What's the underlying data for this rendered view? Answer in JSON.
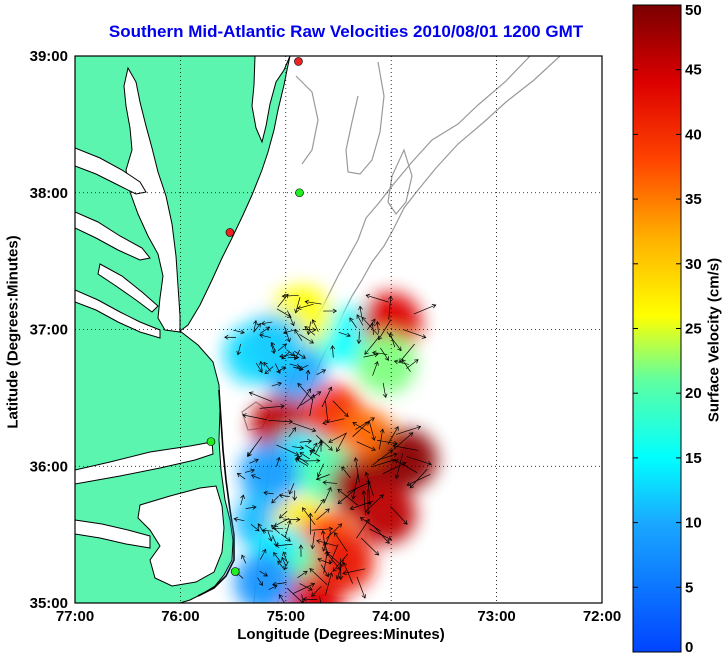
{
  "chart_data": {
    "type": "heatmap",
    "title": "Southern Mid-Atlantic Raw Velocities 2010/08/01 1200 GMT",
    "xlabel": "Longitude (Degrees:Minutes)",
    "ylabel": "Latitude (Degrees:Minutes)",
    "colorbar_label": "Surface Velocity (cm/s)",
    "xlim": [
      -77,
      -72
    ],
    "ylim": [
      35,
      39
    ],
    "x_ticks": [
      {
        "value": -77,
        "label": "77:00"
      },
      {
        "value": -76,
        "label": "76:00"
      },
      {
        "value": -75,
        "label": "75:00"
      },
      {
        "value": -74,
        "label": "74:00"
      },
      {
        "value": -73,
        "label": "73:00"
      },
      {
        "value": -72,
        "label": "72:00"
      }
    ],
    "y_ticks": [
      {
        "value": 35,
        "label": "35:00"
      },
      {
        "value": 36,
        "label": "36:00"
      },
      {
        "value": 37,
        "label": "37:00"
      },
      {
        "value": 38,
        "label": "38:00"
      },
      {
        "value": 39,
        "label": "39:00"
      }
    ],
    "colorbar_range": [
      0,
      50
    ],
    "colorbar_ticks": [
      "0",
      "5",
      "10",
      "15",
      "20",
      "25",
      "30",
      "35",
      "40",
      "45",
      "50"
    ],
    "grid": "dotted",
    "colors": {
      "title": "#0000ee",
      "land": "#5cf5b0",
      "coast": "#000000",
      "bathymetry": "#9a9a9a",
      "station_green": "#22ee22",
      "station_red": "#ee2222"
    },
    "stations": [
      {
        "lon": -74.88,
        "lat": 38.96,
        "color": "red"
      },
      {
        "lon": -74.87,
        "lat": 38.0,
        "color": "green"
      },
      {
        "lon": -75.53,
        "lat": 37.71,
        "color": "red"
      },
      {
        "lon": -75.71,
        "lat": 36.18,
        "color": "green"
      },
      {
        "lon": -75.48,
        "lat": 35.23,
        "color": "green"
      }
    ],
    "velocity_patches": [
      {
        "lon": -74.72,
        "lat": 36.98,
        "speed": 18
      },
      {
        "lon": -74.35,
        "lat": 36.95,
        "speed": 15
      },
      {
        "lon": -74.0,
        "lat": 37.05,
        "speed": 44
      },
      {
        "lon": -74.85,
        "lat": 37.1,
        "speed": 26
      },
      {
        "lon": -75.3,
        "lat": 36.82,
        "speed": 13
      },
      {
        "lon": -74.9,
        "lat": 36.68,
        "speed": 10
      },
      {
        "lon": -75.1,
        "lat": 36.9,
        "speed": 12
      },
      {
        "lon": -74.05,
        "lat": 36.75,
        "speed": 22
      },
      {
        "lon": -75.05,
        "lat": 36.3,
        "speed": 46
      },
      {
        "lon": -74.55,
        "lat": 36.38,
        "speed": 40
      },
      {
        "lon": -74.25,
        "lat": 36.2,
        "speed": 36
      },
      {
        "lon": -74.85,
        "lat": 36.05,
        "speed": 14
      },
      {
        "lon": -75.15,
        "lat": 35.95,
        "speed": 9
      },
      {
        "lon": -74.6,
        "lat": 35.95,
        "speed": 20
      },
      {
        "lon": -74.3,
        "lat": 35.85,
        "speed": 48
      },
      {
        "lon": -73.85,
        "lat": 36.05,
        "speed": 49
      },
      {
        "lon": -74.05,
        "lat": 35.65,
        "speed": 46
      },
      {
        "lon": -75.2,
        "lat": 35.6,
        "speed": 11
      },
      {
        "lon": -74.85,
        "lat": 35.55,
        "speed": 27
      },
      {
        "lon": -74.6,
        "lat": 35.45,
        "speed": 38
      },
      {
        "lon": -75.05,
        "lat": 35.35,
        "speed": 14
      },
      {
        "lon": -74.8,
        "lat": 35.2,
        "speed": 20
      },
      {
        "lon": -74.75,
        "lat": 35.0,
        "speed": 44
      },
      {
        "lon": -75.2,
        "lat": 35.15,
        "speed": 8
      },
      {
        "lon": -74.45,
        "lat": 35.3,
        "speed": 42
      }
    ]
  }
}
